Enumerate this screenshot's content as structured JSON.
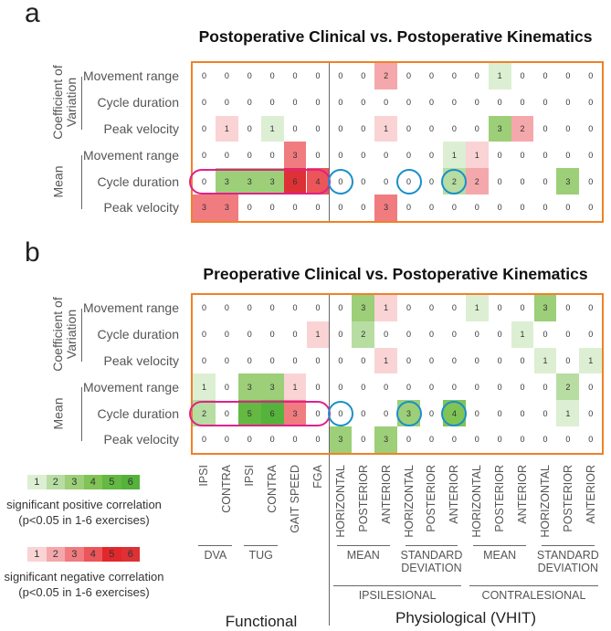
{
  "colors": {
    "positive": [
      "#ffffff",
      "#dcefd3",
      "#b7dda3",
      "#9ccf78",
      "#80c455",
      "#63b942",
      "#55b23b"
    ],
    "negative": [
      "#ffffff",
      "#fad3d5",
      "#f5a8ab",
      "#f07c80",
      "#ec5559",
      "#e2282d",
      "#dd3135"
    ],
    "border": "#f08127",
    "pill": "#e0218a",
    "circle": "#1a8fc9"
  },
  "chart_data": [
    {
      "type": "heatmap",
      "panel": "a",
      "title": "Postoperative Clinical vs. Postoperative Kinematics",
      "note": "positive value = significant positive correlation count, negative value = significant negative correlation count",
      "rows": [
        "Movement range",
        "Cycle duration",
        "Peak velocity",
        "Movement range",
        "Cycle duration",
        "Peak velocity"
      ],
      "row_groups": [
        {
          "label": "Coefficient of Variation",
          "rows": [
            0,
            1,
            2
          ]
        },
        {
          "label": "Mean",
          "rows": [
            3,
            4,
            5
          ]
        }
      ],
      "values": [
        [
          0,
          0,
          0,
          0,
          0,
          0,
          0,
          0,
          -2,
          0,
          0,
          0,
          0,
          1,
          0,
          0,
          0,
          0
        ],
        [
          0,
          0,
          0,
          0,
          0,
          0,
          0,
          0,
          0,
          0,
          0,
          0,
          0,
          0,
          0,
          0,
          0,
          0
        ],
        [
          0,
          -1,
          0,
          1,
          0,
          0,
          0,
          0,
          -1,
          0,
          0,
          0,
          0,
          3,
          -2,
          0,
          0,
          0
        ],
        [
          0,
          0,
          0,
          0,
          -3,
          0,
          0,
          0,
          0,
          0,
          0,
          1,
          -1,
          0,
          0,
          0,
          0,
          0
        ],
        [
          0,
          3,
          3,
          3,
          -6,
          -4,
          0,
          0,
          0,
          0,
          0,
          2,
          -2,
          0,
          0,
          0,
          3,
          0
        ],
        [
          -3,
          -3,
          0,
          0,
          0,
          0,
          0,
          0,
          -3,
          0,
          0,
          0,
          0,
          0,
          0,
          0,
          0,
          0
        ]
      ],
      "highlight_row": 4,
      "highlight_span": [
        0,
        5
      ],
      "circled_columns": [
        6,
        9,
        11
      ]
    },
    {
      "type": "heatmap",
      "panel": "b",
      "title": "Preoperative Clinical vs. Postoperative Kinematics",
      "rows": [
        "Movement range",
        "Cycle duration",
        "Peak velocity",
        "Movement range",
        "Cycle duration",
        "Peak velocity"
      ],
      "row_groups": [
        {
          "label": "Coefficient of Variation",
          "rows": [
            0,
            1,
            2
          ]
        },
        {
          "label": "Mean",
          "rows": [
            3,
            4,
            5
          ]
        }
      ],
      "values": [
        [
          0,
          0,
          0,
          0,
          0,
          0,
          0,
          3,
          -1,
          0,
          0,
          0,
          1,
          0,
          0,
          3,
          0,
          0
        ],
        [
          0,
          0,
          0,
          0,
          0,
          -1,
          0,
          2,
          0,
          0,
          0,
          0,
          0,
          0,
          1,
          0,
          0,
          0
        ],
        [
          0,
          0,
          0,
          0,
          0,
          0,
          0,
          0,
          -1,
          0,
          0,
          0,
          0,
          0,
          0,
          1,
          0,
          1
        ],
        [
          1,
          0,
          3,
          3,
          -1,
          0,
          0,
          0,
          0,
          0,
          0,
          0,
          0,
          0,
          0,
          0,
          2,
          0
        ],
        [
          2,
          0,
          5,
          6,
          -3,
          0,
          0,
          0,
          0,
          3,
          0,
          4,
          0,
          0,
          0,
          0,
          1,
          0
        ],
        [
          0,
          0,
          0,
          0,
          0,
          0,
          3,
          0,
          3,
          0,
          0,
          0,
          0,
          0,
          0,
          0,
          0,
          0
        ]
      ],
      "highlight_row": 4,
      "highlight_span": [
        0,
        5
      ],
      "circled_columns": [
        6,
        9,
        11
      ]
    }
  ],
  "panels": [
    {
      "letter": "a",
      "title": "Postoperative Clinical vs. Postoperative Kinematics"
    },
    {
      "letter": "b",
      "title": "Preoperative Clinical vs. Postoperative Kinematics"
    }
  ],
  "row_labels": [
    "Movement range",
    "Cycle duration",
    "Peak velocity",
    "Movement range",
    "Cycle duration",
    "Peak velocity"
  ],
  "row_groups": [
    {
      "line1": "Coefficient of",
      "line2": "Variation"
    },
    {
      "line1": "Mean",
      "line2": ""
    }
  ],
  "columns": [
    "IPSI",
    "CONTRA",
    "IPSI",
    "CONTRA",
    "GAIT SPEED",
    "FGA",
    "HORIZONTAL",
    "POSTERIOR",
    "ANTERIOR",
    "HORIZONTAL",
    "POSTERIOR",
    "ANTERIOR",
    "HORIZONTAL",
    "POSTERIOR",
    "ANTERIOR",
    "HORIZONTAL",
    "POSTERIOR",
    "ANTERIOR"
  ],
  "column_groups": [
    {
      "line1": "DVA",
      "line2": "",
      "cols": [
        0,
        1
      ]
    },
    {
      "line1": "TUG",
      "line2": "",
      "cols": [
        2,
        3
      ]
    },
    {
      "line1": "MEAN",
      "line2": "",
      "cols": [
        6,
        8
      ]
    },
    {
      "line1": "STANDARD",
      "line2": "DEVIATION",
      "cols": [
        9,
        11
      ]
    },
    {
      "line1": "MEAN",
      "line2": "",
      "cols": [
        12,
        14
      ]
    },
    {
      "line1": "STANDARD",
      "line2": "DEVIATION",
      "cols": [
        15,
        17
      ]
    }
  ],
  "sides": [
    {
      "label": "IPSILESIONAL",
      "cols": [
        6,
        11
      ]
    },
    {
      "label": "CONTRALESIONAL",
      "cols": [
        12,
        17
      ]
    }
  ],
  "categories": {
    "functional": "Functional",
    "physiological": "Physiological (VHIT)"
  },
  "legend": {
    "levels": [
      "1",
      "2",
      "3",
      "4",
      "5",
      "6"
    ],
    "positive_line1": "significant positive correlation",
    "positive_line2": "(p<0.05 in 1-6 exercises)",
    "negative_line1": "significant negative correlation",
    "negative_line2": "(p<0.05 in 1-6 exercises)"
  }
}
